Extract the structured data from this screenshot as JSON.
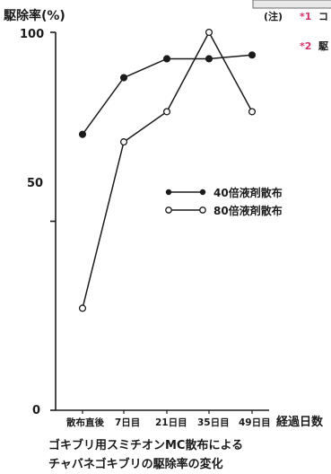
{
  "chart_data": {
    "type": "line",
    "ylabel": "駆除率(%)",
    "xlabel": "経過日数",
    "categories": [
      "散布直後",
      "7日目",
      "21日目",
      "35日目",
      "49日目"
    ],
    "yticks": [
      "100",
      "50",
      "0"
    ],
    "ylim": [
      0,
      100
    ],
    "series": [
      {
        "name": "40倍液剤散布",
        "marker": "filled-circle",
        "values": [
          73,
          88,
          93,
          93,
          94
        ]
      },
      {
        "name": "80倍液剤散布",
        "marker": "open-circle",
        "values": [
          27,
          71,
          79,
          100,
          79
        ]
      }
    ],
    "caption": [
      "ゴキブリ用スミチオンMC散布による",
      "チャバネゴキブリの駆除率の変化"
    ],
    "legend_position": "center-right",
    "grid": false
  },
  "notes": {
    "prefix": "(注)",
    "mark1": "*1",
    "text1": "コ",
    "mark2": "*2",
    "text2": "駆"
  }
}
